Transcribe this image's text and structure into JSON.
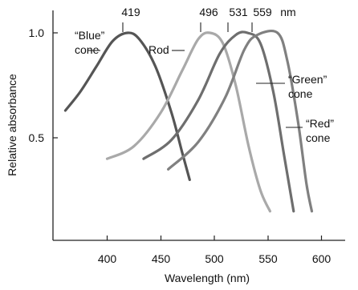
{
  "chart_data": {
    "type": "line",
    "xlabel": "Wavelength (nm)",
    "ylabel": "Relative absorbance",
    "xlim": [
      350,
      620
    ],
    "ylim": [
      0.0,
      1.07
    ],
    "x_ticks": [
      "400",
      "450",
      "500",
      "550",
      "600"
    ],
    "y_ticks": [
      "0.5",
      "1.0"
    ],
    "legend": "none",
    "peak_labels": [
      "419",
      "496",
      "531",
      "559",
      "nm"
    ],
    "series": [
      {
        "name": "“Blue” cone",
        "color": "#555555",
        "label_lines": [
          "“Blue”",
          "cone"
        ],
        "points": [
          [
            361,
            0.63
          ],
          [
            375,
            0.72
          ],
          [
            390,
            0.84
          ],
          [
            405,
            0.96
          ],
          [
            419,
            1.0
          ],
          [
            430,
            0.97
          ],
          [
            445,
            0.84
          ],
          [
            460,
            0.62
          ],
          [
            470,
            0.43
          ],
          [
            477,
            0.3
          ]
        ]
      },
      {
        "name": "Rod",
        "color": "#a9a9a9",
        "label_lines": [
          "Rod"
        ],
        "points": [
          [
            400,
            0.4
          ],
          [
            425,
            0.46
          ],
          [
            450,
            0.62
          ],
          [
            470,
            0.82
          ],
          [
            485,
            0.97
          ],
          [
            496,
            1.0
          ],
          [
            508,
            0.95
          ],
          [
            520,
            0.75
          ],
          [
            532,
            0.46
          ],
          [
            543,
            0.25
          ],
          [
            552,
            0.15
          ]
        ]
      },
      {
        "name": "“Green” cone",
        "color": "#6e6e6e",
        "label_lines": [
          "“Green”",
          "cone"
        ],
        "points": [
          [
            434,
            0.4
          ],
          [
            460,
            0.49
          ],
          [
            485,
            0.68
          ],
          [
            505,
            0.9
          ],
          [
            520,
            0.99
          ],
          [
            531,
            1.0
          ],
          [
            543,
            0.95
          ],
          [
            555,
            0.72
          ],
          [
            565,
            0.42
          ],
          [
            574,
            0.15
          ]
        ]
      },
      {
        "name": "“Red” cone",
        "color": "#808080",
        "label_lines": [
          "“Red”",
          "cone"
        ],
        "points": [
          [
            457,
            0.35
          ],
          [
            485,
            0.48
          ],
          [
            510,
            0.69
          ],
          [
            528,
            0.92
          ],
          [
            540,
            0.99
          ],
          [
            559,
            1.0
          ],
          [
            568,
            0.87
          ],
          [
            578,
            0.58
          ],
          [
            586,
            0.28
          ],
          [
            591,
            0.15
          ]
        ]
      }
    ]
  }
}
